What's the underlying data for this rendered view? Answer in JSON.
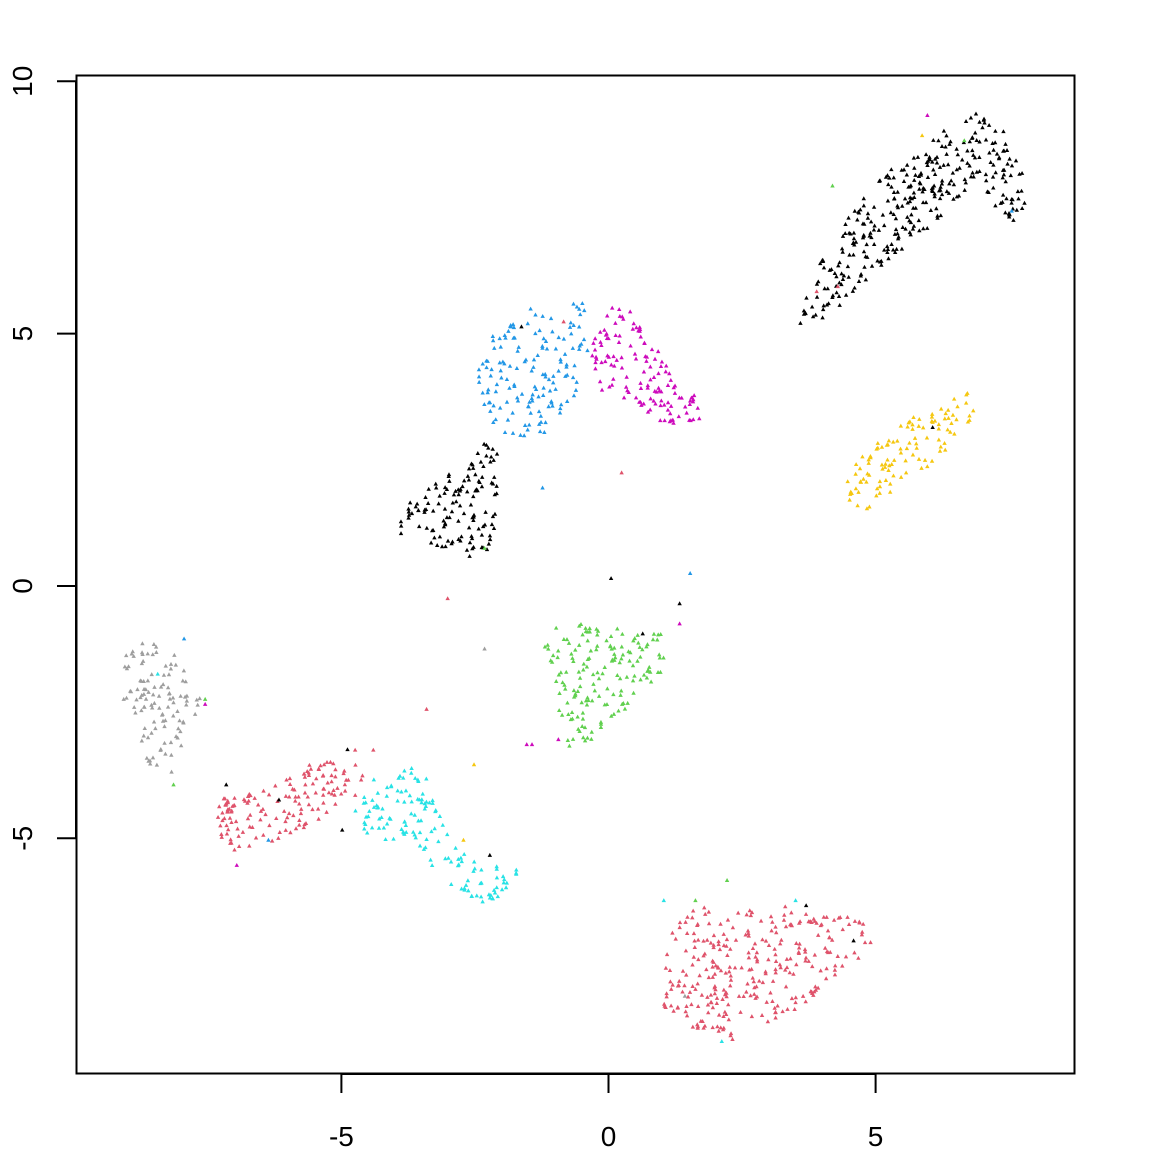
{
  "chart_data": {
    "type": "scatter",
    "title": "",
    "xlabel": "",
    "ylabel": "",
    "xlim": [
      -10.05,
      8.9
    ],
    "ylim": [
      -9.75,
      10.1
    ],
    "x_ticks": [
      -5,
      0,
      5
    ],
    "x_tick_labels": [
      "-5",
      "0",
      "5"
    ],
    "y_ticks": [
      -5,
      0,
      5,
      10
    ],
    "y_tick_labels": [
      "-5",
      "0",
      "5",
      "10"
    ],
    "grid": false,
    "legend": "none",
    "marker": "small triangle",
    "colors": {
      "black": "#000000",
      "crimson": "#DF536B",
      "green": "#61D04F",
      "blue": "#2297E6",
      "cyan": "#28E2E5",
      "magenta": "#CD0BBC",
      "yellow": "#F5C710",
      "gray": "#9E9E9E"
    },
    "clusters": [
      {
        "color": "black",
        "count": 330,
        "polygon": [
          [
            3.6,
            5.1
          ],
          [
            4.0,
            6.3
          ],
          [
            4.6,
            7.3
          ],
          [
            5.2,
            8.1
          ],
          [
            6.0,
            8.8
          ],
          [
            7.1,
            9.4
          ],
          [
            7.7,
            8.9
          ],
          [
            8.1,
            7.8
          ],
          [
            7.8,
            7.1
          ],
          [
            6.9,
            7.9
          ],
          [
            6.4,
            7.3
          ],
          [
            5.6,
            6.6
          ],
          [
            4.9,
            5.9
          ],
          [
            4.2,
            5.2
          ]
        ]
      },
      {
        "color": "black",
        "count": 130,
        "polygon": [
          [
            -3.9,
            1.4
          ],
          [
            -3.6,
            1.8
          ],
          [
            -3.1,
            2.2
          ],
          [
            -2.6,
            2.3
          ],
          [
            -2.3,
            2.9
          ],
          [
            -2.0,
            2.5
          ],
          [
            -2.0,
            1.5
          ],
          [
            -2.1,
            0.6
          ],
          [
            -2.5,
            0.5
          ],
          [
            -3.0,
            0.7
          ],
          [
            -3.5,
            0.8
          ],
          [
            -3.9,
            1.0
          ]
        ]
      },
      {
        "color": "blue",
        "count": 150,
        "polygon": [
          [
            -2.5,
            4.2
          ],
          [
            -2.1,
            5.0
          ],
          [
            -1.6,
            5.4
          ],
          [
            -1.0,
            5.6
          ],
          [
            -0.4,
            5.6
          ],
          [
            -0.3,
            4.5
          ],
          [
            -0.6,
            3.7
          ],
          [
            -1.1,
            3.0
          ],
          [
            -1.8,
            2.9
          ],
          [
            -2.4,
            3.4
          ]
        ]
      },
      {
        "color": "magenta",
        "count": 130,
        "polygon": [
          [
            -0.3,
            4.7
          ],
          [
            0.1,
            5.5
          ],
          [
            0.5,
            5.4
          ],
          [
            1.0,
            4.6
          ],
          [
            1.4,
            3.9
          ],
          [
            1.8,
            3.7
          ],
          [
            1.9,
            3.3
          ],
          [
            1.2,
            3.1
          ],
          [
            0.5,
            3.6
          ],
          [
            -0.1,
            3.8
          ]
        ]
      },
      {
        "color": "yellow",
        "count": 110,
        "polygon": [
          [
            4.4,
            1.7
          ],
          [
            4.9,
            2.7
          ],
          [
            5.6,
            3.2
          ],
          [
            6.3,
            3.5
          ],
          [
            6.9,
            3.9
          ],
          [
            7.1,
            3.4
          ],
          [
            6.6,
            2.8
          ],
          [
            6.1,
            2.3
          ],
          [
            5.4,
            1.8
          ],
          [
            4.9,
            1.4
          ]
        ]
      },
      {
        "color": "green",
        "count": 160,
        "polygon": [
          [
            -1.2,
            -1.3
          ],
          [
            -0.9,
            -0.8
          ],
          [
            -0.1,
            -0.8
          ],
          [
            0.6,
            -1.0
          ],
          [
            1.2,
            -1.0
          ],
          [
            1.2,
            -1.8
          ],
          [
            0.6,
            -2.2
          ],
          [
            0.2,
            -2.8
          ],
          [
            -0.5,
            -3.3
          ],
          [
            -1.0,
            -3.5
          ],
          [
            -0.9,
            -2.4
          ]
        ]
      },
      {
        "color": "gray",
        "count": 110,
        "polygon": [
          [
            -9.2,
            -1.5
          ],
          [
            -8.9,
            -1.1
          ],
          [
            -8.4,
            -1.2
          ],
          [
            -8.0,
            -1.6
          ],
          [
            -7.6,
            -2.2
          ],
          [
            -7.6,
            -2.4
          ],
          [
            -8.0,
            -3.1
          ],
          [
            -8.2,
            -3.8
          ],
          [
            -8.7,
            -3.6
          ],
          [
            -8.9,
            -2.8
          ],
          [
            -9.2,
            -2.2
          ]
        ]
      },
      {
        "color": "crimson",
        "count": 150,
        "polygon": [
          [
            -7.4,
            -4.3
          ],
          [
            -6.4,
            -4.1
          ],
          [
            -5.5,
            -3.5
          ],
          [
            -4.8,
            -3.3
          ],
          [
            -4.4,
            -3.3
          ],
          [
            -4.6,
            -4.2
          ],
          [
            -5.4,
            -4.7
          ],
          [
            -6.2,
            -5.1
          ],
          [
            -6.8,
            -5.4
          ],
          [
            -7.3,
            -5.2
          ],
          [
            -7.4,
            -4.8
          ]
        ]
      },
      {
        "color": "cyan",
        "count": 140,
        "polygon": [
          [
            -4.8,
            -4.4
          ],
          [
            -4.2,
            -3.9
          ],
          [
            -3.6,
            -3.6
          ],
          [
            -3.3,
            -4.0
          ],
          [
            -3.0,
            -5.0
          ],
          [
            -2.4,
            -5.6
          ],
          [
            -1.6,
            -5.5
          ],
          [
            -1.7,
            -6.0
          ],
          [
            -2.3,
            -6.4
          ],
          [
            -3.1,
            -5.9
          ],
          [
            -3.6,
            -5.3
          ],
          [
            -4.5,
            -5.1
          ]
        ]
      },
      {
        "color": "crimson",
        "count": 300,
        "polygon": [
          [
            1.1,
            -7.2
          ],
          [
            1.6,
            -6.4
          ],
          [
            2.6,
            -6.5
          ],
          [
            3.6,
            -6.4
          ],
          [
            4.5,
            -6.6
          ],
          [
            5.3,
            -6.9
          ],
          [
            4.7,
            -7.6
          ],
          [
            4.0,
            -8.2
          ],
          [
            3.4,
            -8.6
          ],
          [
            2.4,
            -9.1
          ],
          [
            1.6,
            -8.8
          ],
          [
            1.1,
            -8.4
          ]
        ]
      }
    ],
    "outliers": [
      {
        "color": "black",
        "points": [
          [
            0.1,
            0.1
          ],
          [
            1.4,
            -0.4
          ],
          [
            0.7,
            -1.0
          ],
          [
            -4.9,
            -3.3
          ],
          [
            -2.2,
            -5.4
          ],
          [
            -7.2,
            -4.0
          ],
          [
            -5.0,
            -4.9
          ],
          [
            3.8,
            -6.4
          ],
          [
            4.7,
            -7.1
          ],
          [
            6.2,
            3.1
          ],
          [
            -6.2,
            -4.3
          ],
          [
            -1.6,
            5.1
          ]
        ]
      },
      {
        "color": "crimson",
        "points": [
          [
            -3.0,
            -0.3
          ],
          [
            -3.4,
            -2.5
          ],
          [
            0.3,
            2.2
          ],
          [
            -0.8,
            5.2
          ],
          [
            4.4,
            5.9
          ],
          [
            4.0,
            5.8
          ]
        ]
      },
      {
        "color": "magenta",
        "points": [
          [
            -1.5,
            -3.2
          ],
          [
            -1.4,
            -3.2
          ],
          [
            -0.9,
            -3.1
          ],
          [
            1.4,
            -0.8
          ],
          [
            -7.6,
            -2.4
          ],
          [
            -7.0,
            -5.6
          ],
          [
            6.1,
            9.3
          ]
        ]
      },
      {
        "color": "green",
        "points": [
          [
            -7.6,
            -2.3
          ],
          [
            -8.2,
            -4.0
          ],
          [
            -2.3,
            0.7
          ],
          [
            2.3,
            -5.9
          ],
          [
            1.7,
            -6.3
          ],
          [
            4.3,
            7.9
          ],
          [
            6.8,
            8.8
          ]
        ]
      },
      {
        "color": "blue",
        "points": [
          [
            1.6,
            0.2
          ],
          [
            -1.2,
            1.9
          ],
          [
            -8.0,
            -1.1
          ],
          [
            -6.4,
            -5.1
          ],
          [
            7.7,
            7.4
          ]
        ]
      },
      {
        "color": "cyan",
        "points": [
          [
            1.1,
            -6.3
          ],
          [
            3.6,
            -6.3
          ],
          [
            2.2,
            -9.1
          ],
          [
            -4.4,
            -3.9
          ],
          [
            -8.5,
            -1.8
          ]
        ]
      },
      {
        "color": "yellow",
        "points": [
          [
            -2.5,
            -3.6
          ],
          [
            -2.7,
            -5.1
          ],
          [
            6.0,
            8.9
          ]
        ]
      },
      {
        "color": "gray",
        "points": [
          [
            1.5,
            -8.2
          ],
          [
            -2.3,
            -1.3
          ]
        ]
      }
    ]
  }
}
